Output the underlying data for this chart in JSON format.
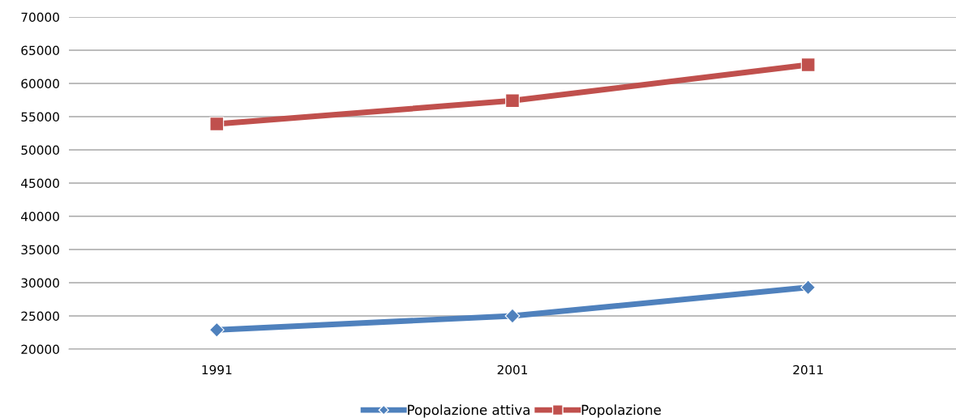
{
  "chart_data": {
    "type": "line",
    "categories": [
      "1991",
      "2001",
      "2011"
    ],
    "series": [
      {
        "name": "Popolazione attiva",
        "color": "#4f81bd",
        "marker": "diamond",
        "values": [
          22900,
          25000,
          29300
        ]
      },
      {
        "name": "Popolazione",
        "color": "#c0504d",
        "marker": "square",
        "values": [
          53900,
          57400,
          62800
        ]
      }
    ],
    "ylim": [
      20000,
      70000
    ],
    "yticks": [
      20000,
      25000,
      30000,
      35000,
      40000,
      45000,
      50000,
      55000,
      60000,
      65000,
      70000
    ],
    "grid": "y",
    "legend": "bottom"
  }
}
